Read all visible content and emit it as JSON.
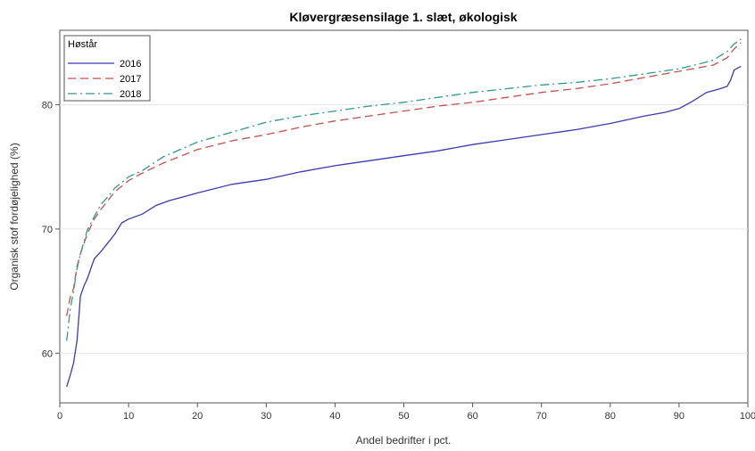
{
  "chart_data": {
    "type": "line",
    "title": "Kløvergræsensilage 1. slæt, økologisk",
    "xlabel": "Andel bedrifter i pct.",
    "ylabel": "Organisk stof fordøjelighed (%)",
    "xlim": [
      0,
      100
    ],
    "ylim": [
      56,
      86
    ],
    "xticks": [
      0,
      10,
      20,
      30,
      40,
      50,
      60,
      70,
      80,
      90,
      100
    ],
    "yticks": [
      60,
      70,
      80
    ],
    "grid": "horizontal",
    "legend": {
      "title": "Høstår",
      "placement": "top-left"
    },
    "series": [
      {
        "name": "2016",
        "color": "#3b3bb3",
        "dash": "solid",
        "x": [
          1,
          1.5,
          2,
          2.5,
          3,
          3.5,
          4,
          5,
          6,
          7,
          8,
          9,
          10,
          12,
          14,
          16,
          18,
          20,
          25,
          30,
          35,
          40,
          45,
          50,
          55,
          60,
          65,
          70,
          75,
          80,
          85,
          88,
          90,
          92,
          94,
          96,
          97,
          97.5,
          98,
          99
        ],
        "y": [
          57.3,
          58.2,
          59.2,
          61.0,
          64.6,
          65.4,
          66.0,
          67.6,
          68.2,
          68.9,
          69.6,
          70.5,
          70.8,
          71.2,
          71.9,
          72.3,
          72.6,
          72.9,
          73.6,
          74.0,
          74.6,
          75.1,
          75.5,
          75.9,
          76.3,
          76.8,
          77.2,
          77.6,
          78.0,
          78.5,
          79.1,
          79.4,
          79.7,
          80.3,
          81.0,
          81.3,
          81.5,
          82.0,
          82.8,
          83.1
        ]
      },
      {
        "name": "2017",
        "color": "#c8504f",
        "dash": "long",
        "x": [
          1,
          1.5,
          2,
          2.5,
          3,
          4,
          5,
          6,
          7,
          8,
          10,
          12,
          15,
          20,
          25,
          30,
          35,
          40,
          45,
          50,
          55,
          60,
          65,
          70,
          75,
          80,
          85,
          90,
          93,
          95,
          97,
          98,
          99
        ],
        "y": [
          63.0,
          64.5,
          65.2,
          67.0,
          68.0,
          69.6,
          70.8,
          71.6,
          72.3,
          73.0,
          73.9,
          74.5,
          75.3,
          76.4,
          77.1,
          77.6,
          78.2,
          78.7,
          79.1,
          79.5,
          79.9,
          80.2,
          80.6,
          81.0,
          81.3,
          81.7,
          82.2,
          82.7,
          83.0,
          83.2,
          83.8,
          84.5,
          85.0
        ]
      },
      {
        "name": "2018",
        "color": "#2e9a8a",
        "dash": "dashdot",
        "x": [
          1,
          1.5,
          2,
          2.5,
          3,
          4,
          5,
          6,
          7,
          8,
          10,
          12,
          15,
          20,
          25,
          30,
          35,
          40,
          45,
          50,
          55,
          60,
          65,
          70,
          75,
          80,
          85,
          90,
          93,
          95,
          97,
          98,
          99
        ],
        "y": [
          61.0,
          63.5,
          65.0,
          66.8,
          68.0,
          69.9,
          71.0,
          72.0,
          72.6,
          73.3,
          74.2,
          74.7,
          75.8,
          77.0,
          77.8,
          78.6,
          79.1,
          79.5,
          79.9,
          80.2,
          80.6,
          81.0,
          81.3,
          81.6,
          81.8,
          82.1,
          82.5,
          82.9,
          83.3,
          83.6,
          84.3,
          84.9,
          85.3
        ]
      }
    ]
  }
}
